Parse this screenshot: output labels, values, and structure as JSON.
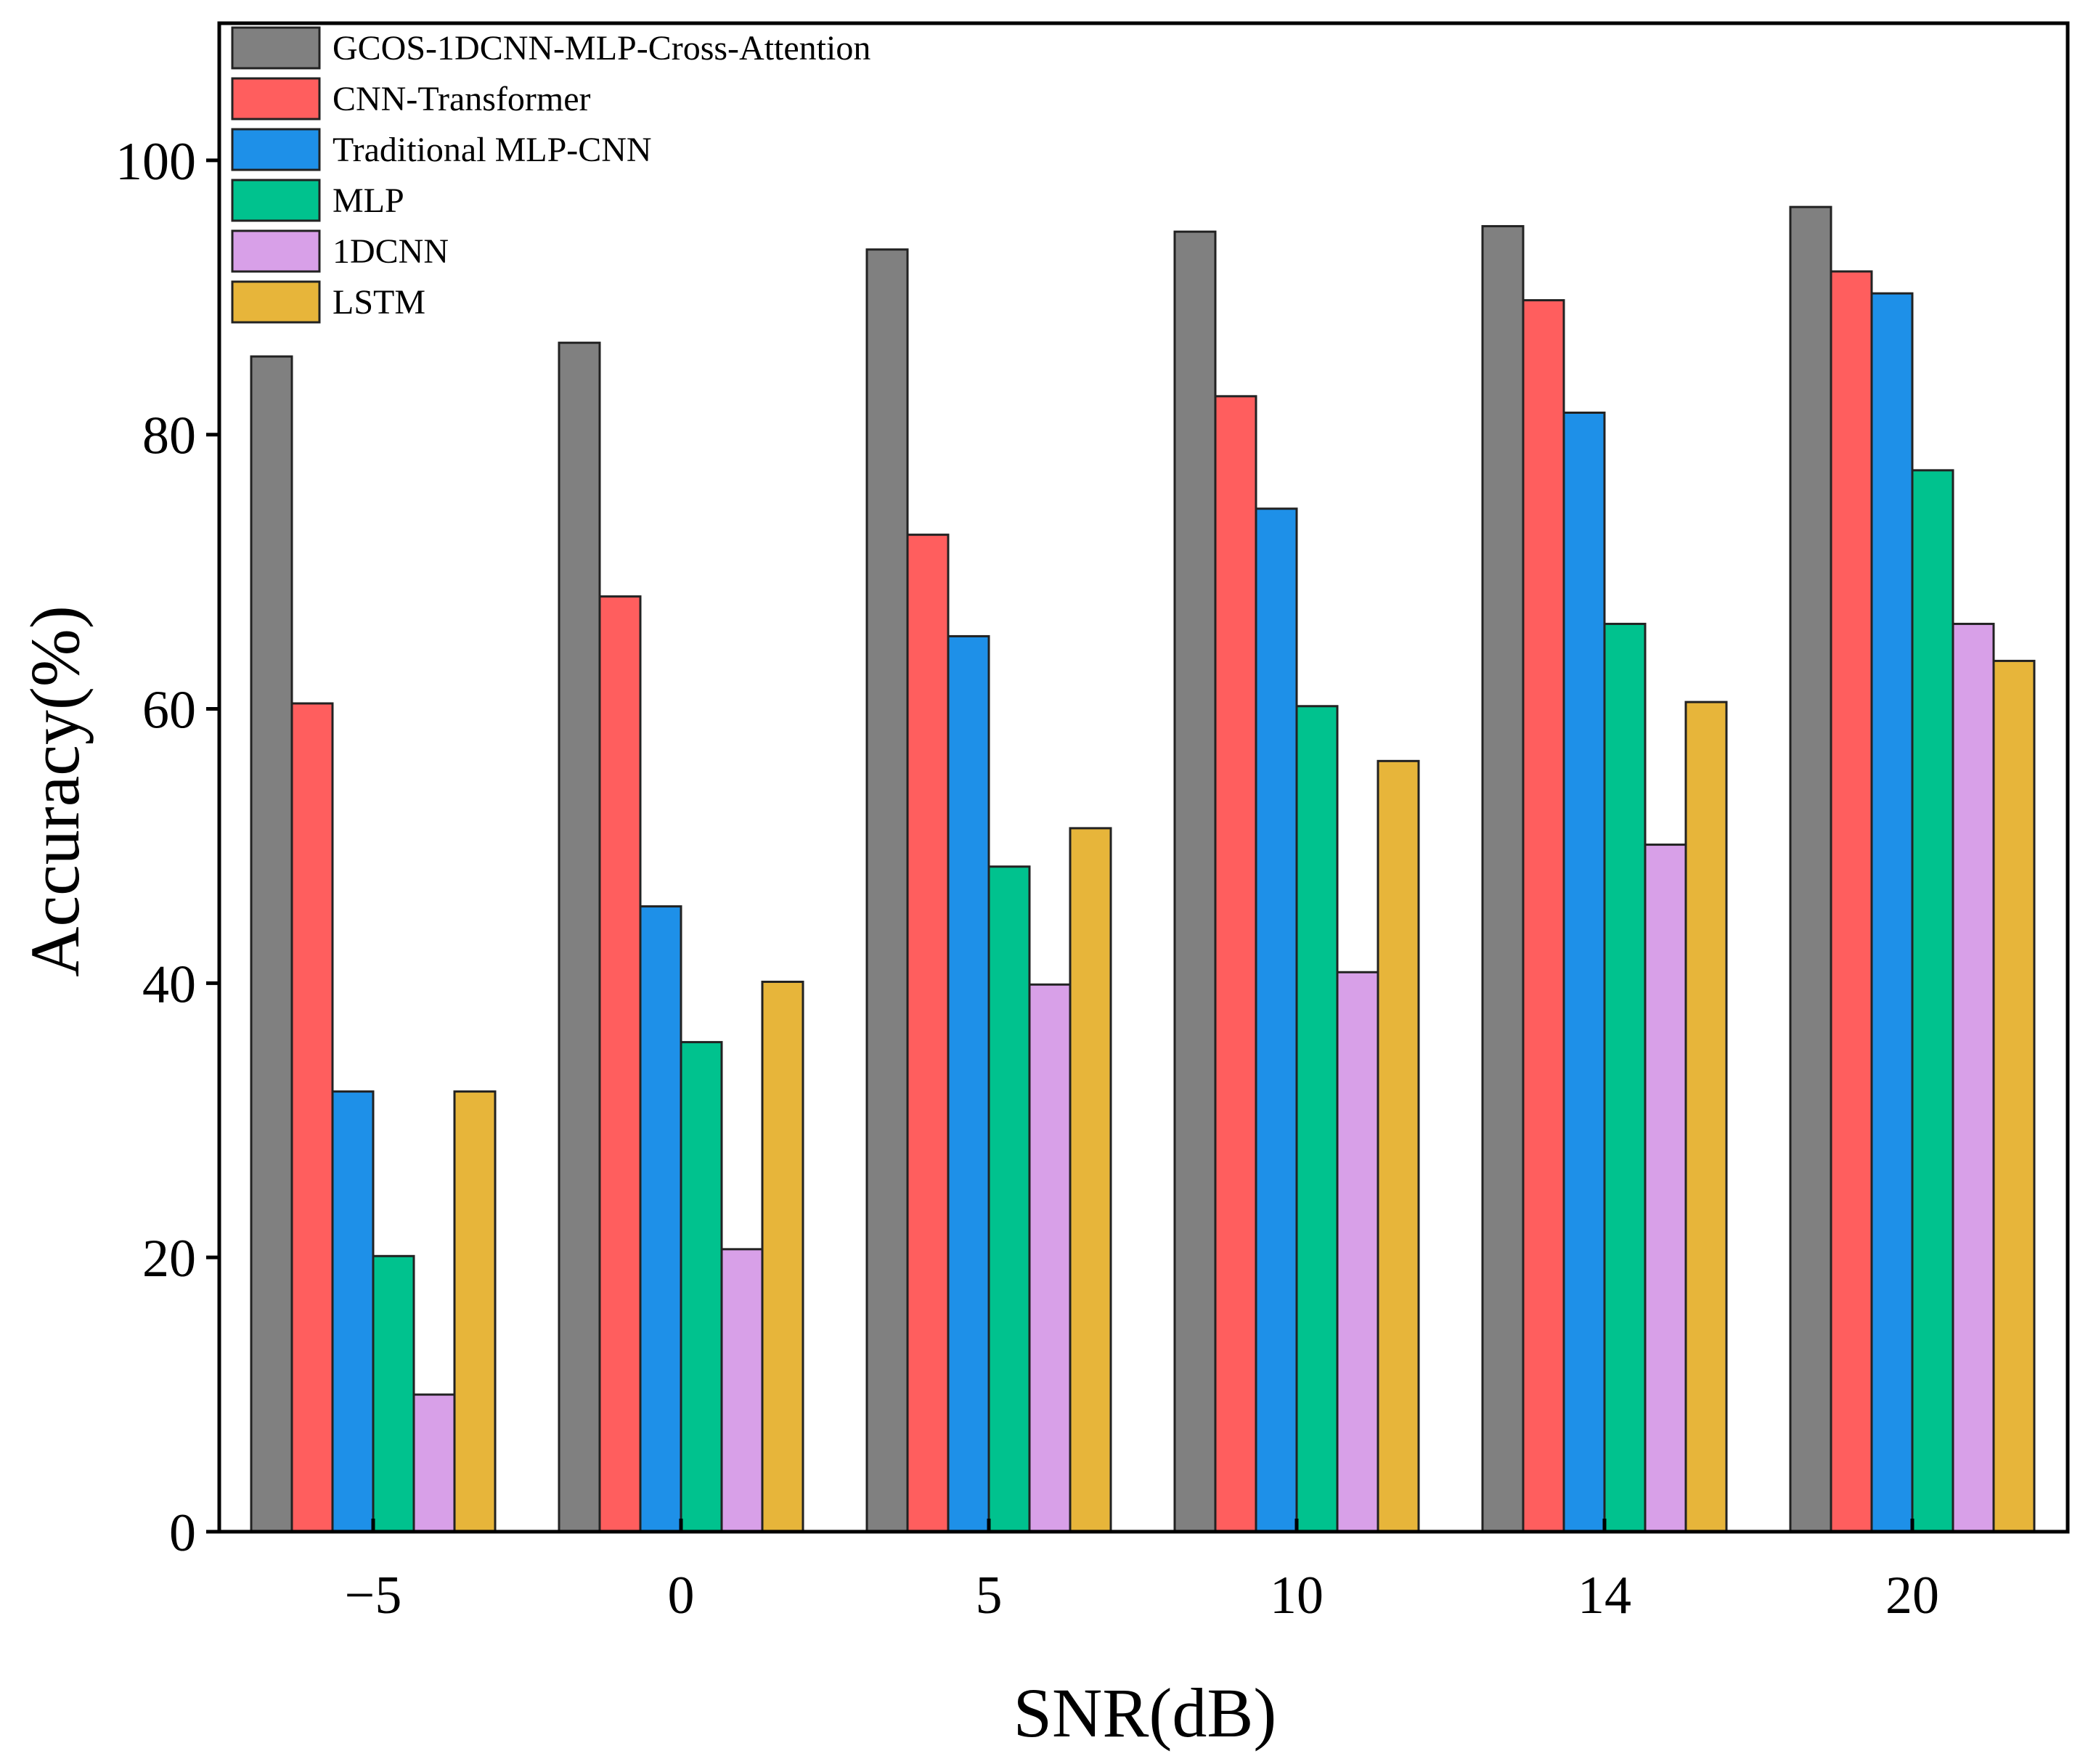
{
  "chart_data": {
    "type": "bar",
    "title": "",
    "xlabel": "SNR(dB)",
    "ylabel": "Accuracy(%)",
    "ylim": [
      0,
      110
    ],
    "yticks": [
      0,
      20,
      40,
      60,
      80,
      100
    ],
    "grid": false,
    "legend_position": "top-left",
    "categories": [
      "−5",
      "0",
      "5",
      "10",
      "14",
      "20"
    ],
    "series": [
      {
        "name": "GCOS-1DCNN-MLP-Cross-Attention",
        "color": "#808080",
        "values": [
          85.7,
          86.7,
          93.5,
          94.8,
          95.2,
          96.6
        ]
      },
      {
        "name": "CNN-Transformer",
        "color": "#FF5E5E",
        "values": [
          60.4,
          68.2,
          72.7,
          82.8,
          89.8,
          91.9
        ]
      },
      {
        "name": "Traditional MLP-CNN",
        "color": "#1E90E8",
        "values": [
          32.1,
          45.6,
          65.3,
          74.6,
          81.6,
          90.3
        ]
      },
      {
        "name": "MLP",
        "color": "#00C28E",
        "values": [
          20.1,
          35.7,
          48.5,
          60.2,
          66.2,
          77.4
        ]
      },
      {
        "name": "1DCNN",
        "color": "#D8A0E8",
        "values": [
          10.0,
          20.6,
          39.9,
          40.8,
          50.1,
          66.2
        ]
      },
      {
        "name": "LSTM",
        "color": "#E7B53A",
        "values": [
          32.1,
          40.1,
          51.3,
          56.2,
          60.5,
          63.5
        ]
      }
    ]
  }
}
